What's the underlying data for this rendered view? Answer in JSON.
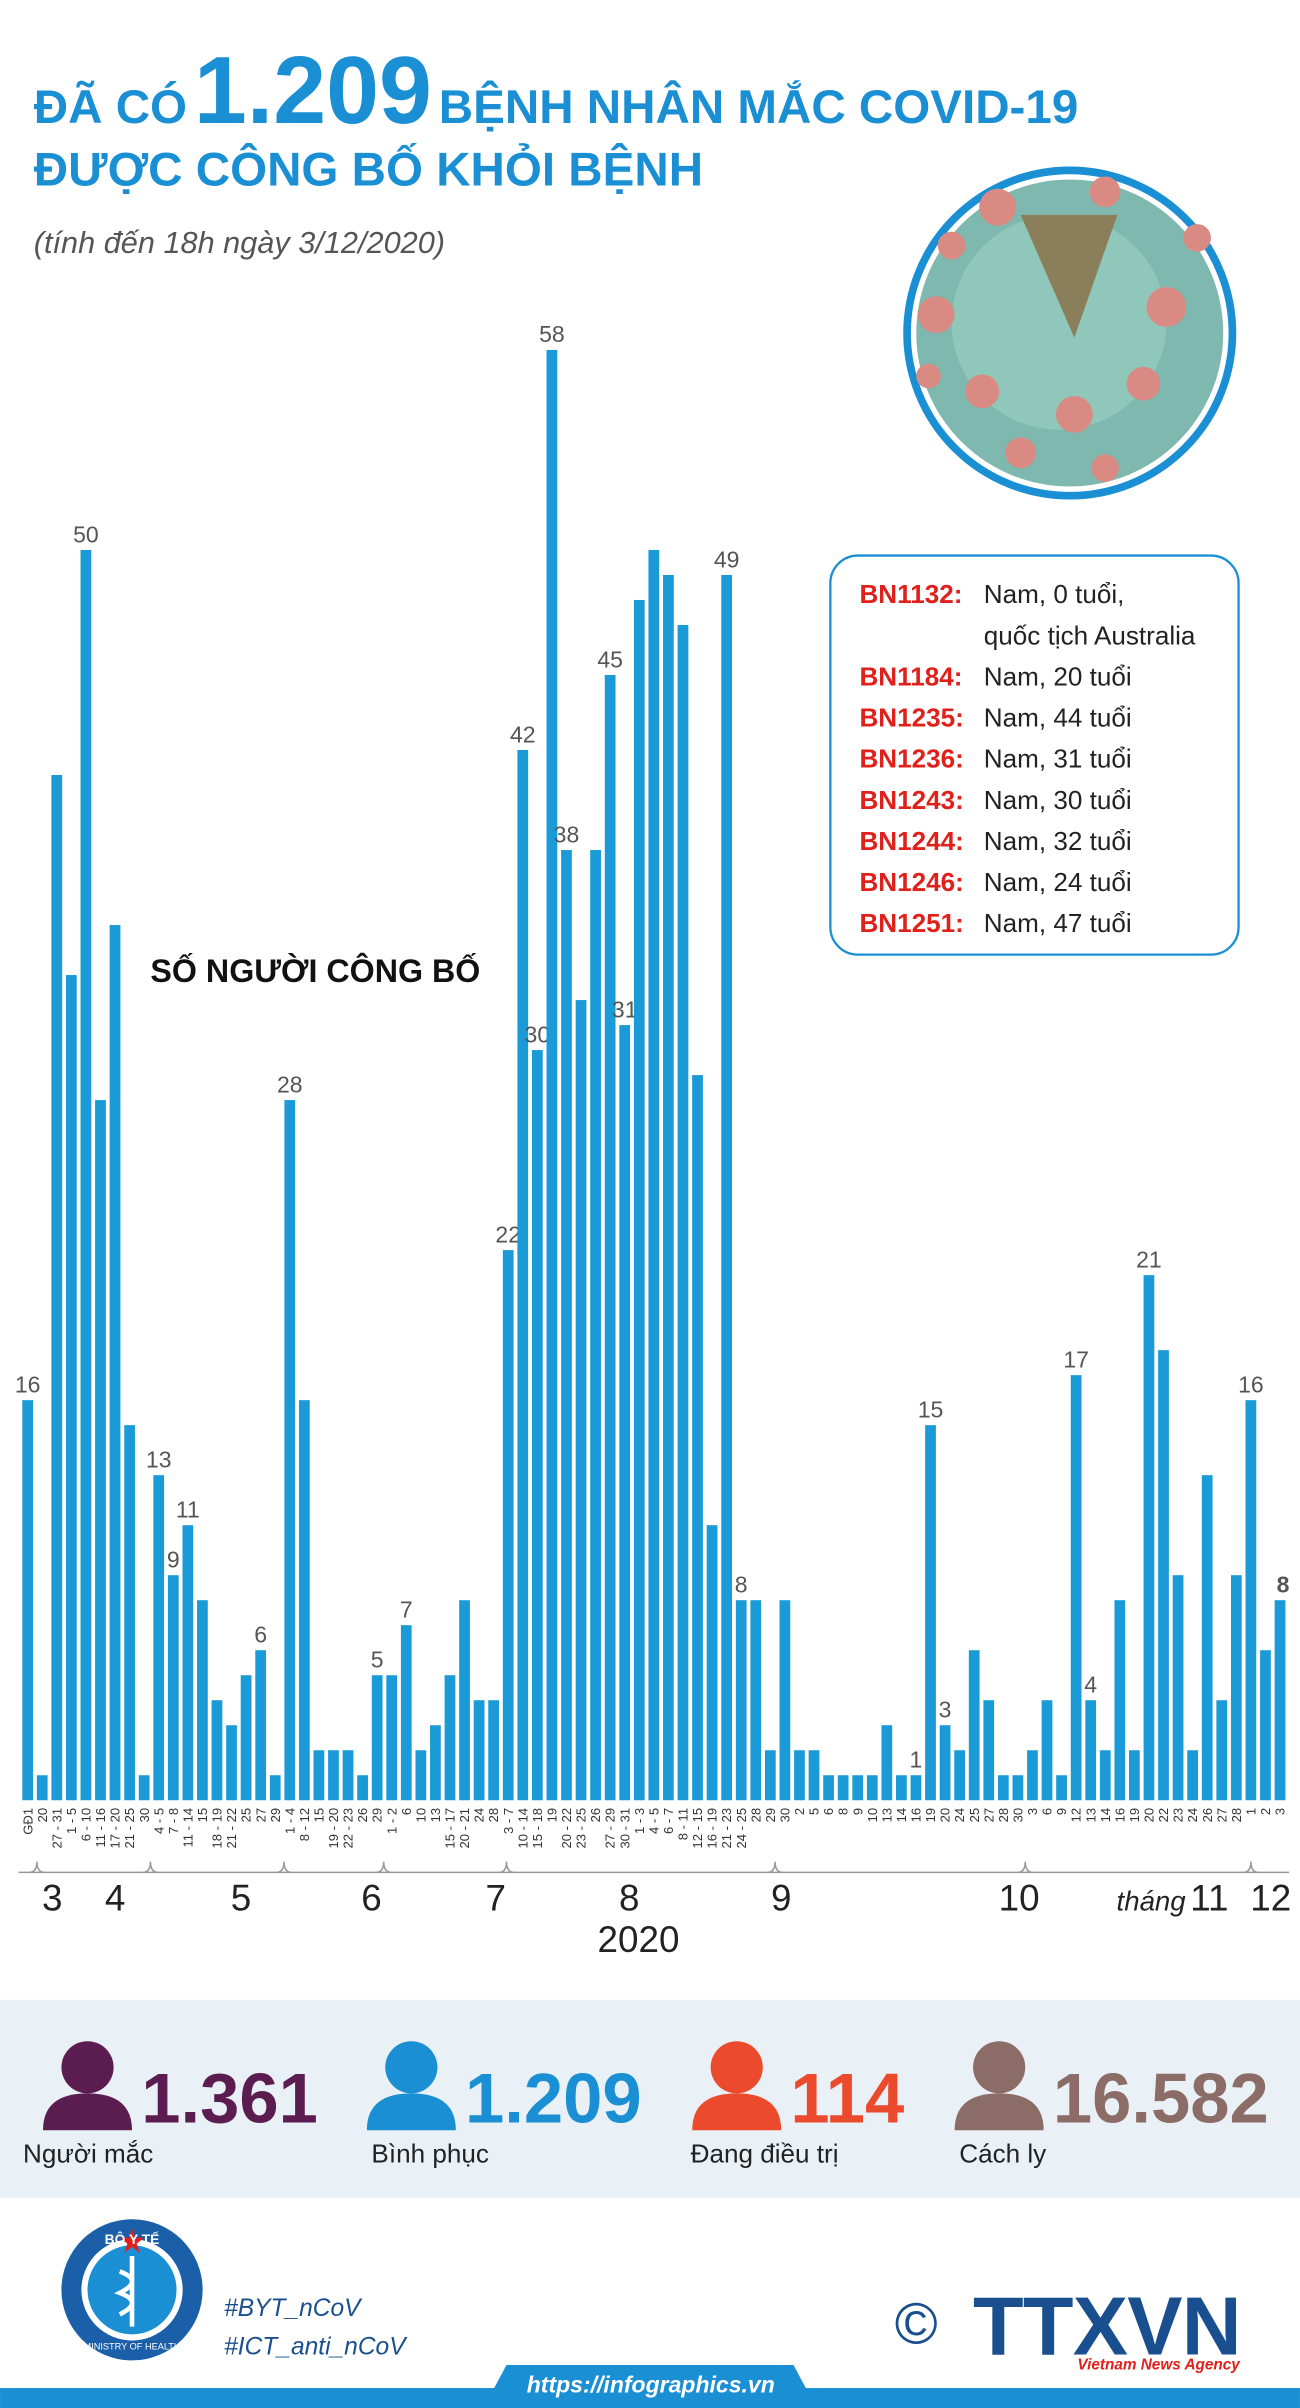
{
  "header": {
    "prefix": "ĐÃ CÓ",
    "highlight": "1.209",
    "suffix": "BỆNH NHÂN MẮC COVID-19",
    "line2": "ĐƯỢC CÔNG BỐ KHỎI BỆNH",
    "subtitle": "(tính đến 18h ngày 3/12/2020)"
  },
  "chart_data": {
    "type": "bar",
    "title": "SỐ NGƯỜI CÔNG BỐ",
    "color": "#1a9ad6",
    "ylim": [
      0,
      58
    ],
    "categories": [
      "GĐ1",
      "20",
      "27 - 31",
      "1 - 5",
      "6 - 10",
      "11 - 16",
      "17 - 20",
      "21 - 25",
      "30",
      "4 - 5",
      "7 - 8",
      "11 - 14",
      "15",
      "18 - 19",
      "21 - 22",
      "25",
      "27",
      "29",
      "1 - 4",
      "8 - 12",
      "15",
      "19 - 20",
      "22 - 23",
      "26",
      "29",
      "1 - 2",
      "6",
      "10",
      "13",
      "15 - 17",
      "20 - 21",
      "24",
      "28",
      "3 - 7",
      "10 - 14",
      "15 - 18",
      "19",
      "20 - 22",
      "23 - 25",
      "26",
      "27 - 29",
      "30 - 31",
      "1 - 3",
      "4 - 5",
      "6 - 7",
      "8 - 11",
      "12 - 15",
      "16 - 19",
      "21 - 23",
      "24 - 25",
      "28",
      "29",
      "30",
      "2",
      "5",
      "6",
      "8",
      "9",
      "10",
      "13",
      "14",
      "16",
      "19",
      "20",
      "24",
      "25",
      "27",
      "28",
      "30",
      "3",
      "6",
      "9",
      "12",
      "13",
      "14",
      "16",
      "19",
      "20",
      "22",
      "23",
      "24",
      "26",
      "27",
      "28",
      "1",
      "2",
      "3"
    ],
    "values": [
      16,
      1,
      41,
      33,
      50,
      28,
      35,
      15,
      1,
      13,
      9,
      11,
      8,
      4,
      3,
      5,
      6,
      1,
      28,
      16,
      2,
      2,
      2,
      1,
      5,
      5,
      7,
      2,
      3,
      5,
      8,
      4,
      4,
      22,
      42,
      30,
      58,
      38,
      32,
      38,
      45,
      31,
      48,
      50,
      49,
      47,
      29,
      11,
      49,
      8,
      8,
      2,
      8,
      2,
      2,
      1,
      1,
      1,
      1,
      3,
      1,
      1,
      15,
      3,
      2,
      6,
      4,
      1,
      1,
      2,
      4,
      1,
      17,
      4,
      2,
      8,
      2,
      21,
      18,
      9,
      2,
      13,
      4,
      9,
      16,
      6,
      8
    ],
    "value_labels": [
      "16",
      null,
      null,
      null,
      "50",
      null,
      null,
      null,
      null,
      "13",
      "9",
      "11",
      null,
      null,
      null,
      null,
      "6",
      null,
      "28",
      null,
      null,
      null,
      null,
      null,
      "5",
      null,
      "7",
      null,
      null,
      null,
      null,
      null,
      null,
      "22",
      "42",
      "30",
      "58",
      "38",
      null,
      null,
      "45",
      "31",
      null,
      null,
      null,
      null,
      null,
      null,
      "49",
      "8",
      null,
      null,
      null,
      null,
      null,
      null,
      null,
      null,
      null,
      null,
      null,
      "1",
      "15",
      "3",
      null,
      null,
      null,
      null,
      null,
      null,
      null,
      null,
      "17",
      "4",
      null,
      null,
      null,
      "21",
      null,
      null,
      null,
      null,
      null,
      null,
      "16",
      null,
      "8"
    ],
    "months": [
      "3",
      "4",
      "5",
      "6",
      "7",
      "8",
      "9",
      "10",
      "11",
      "12"
    ],
    "month_prefix": "tháng",
    "year": "2020"
  },
  "patients": [
    {
      "id": "BN1132:",
      "lines": [
        "Nam, 0 tuổi,",
        "quốc tịch Australia"
      ]
    },
    {
      "id": "BN1184:",
      "lines": [
        "Nam, 20 tuổi"
      ]
    },
    {
      "id": "BN1235:",
      "lines": [
        "Nam, 44 tuổi"
      ]
    },
    {
      "id": "BN1236:",
      "lines": [
        "Nam, 31 tuổi"
      ]
    },
    {
      "id": "BN1243:",
      "lines": [
        "Nam, 30 tuổi"
      ]
    },
    {
      "id": "BN1244:",
      "lines": [
        "Nam, 32 tuổi"
      ]
    },
    {
      "id": "BN1246:",
      "lines": [
        "Nam, 24 tuổi"
      ]
    },
    {
      "id": "BN1251:",
      "lines": [
        "Nam, 47 tuổi"
      ]
    }
  ],
  "stats": [
    {
      "value": "1.361",
      "label": "Người mắc",
      "color": "#5b1d50"
    },
    {
      "value": "1.209",
      "label": "Bình phục",
      "color": "#1a8fd4"
    },
    {
      "value": "114",
      "label": "Đang điều trị",
      "color": "#ec4a2c"
    },
    {
      "value": "16.582",
      "label": "Cách ly",
      "color": "#8c6c67"
    }
  ],
  "footer": {
    "ministry": "BỘ Y TẾ",
    "ministry_en": "MINISTRY OF HEALTH",
    "tags": [
      "#BYT_nCoV",
      "#ICT_anti_nCoV"
    ],
    "copyright": "©",
    "agency": "TTXVN",
    "agency_en": "Vietnam News Agency",
    "url": "https://infographics.vn"
  }
}
